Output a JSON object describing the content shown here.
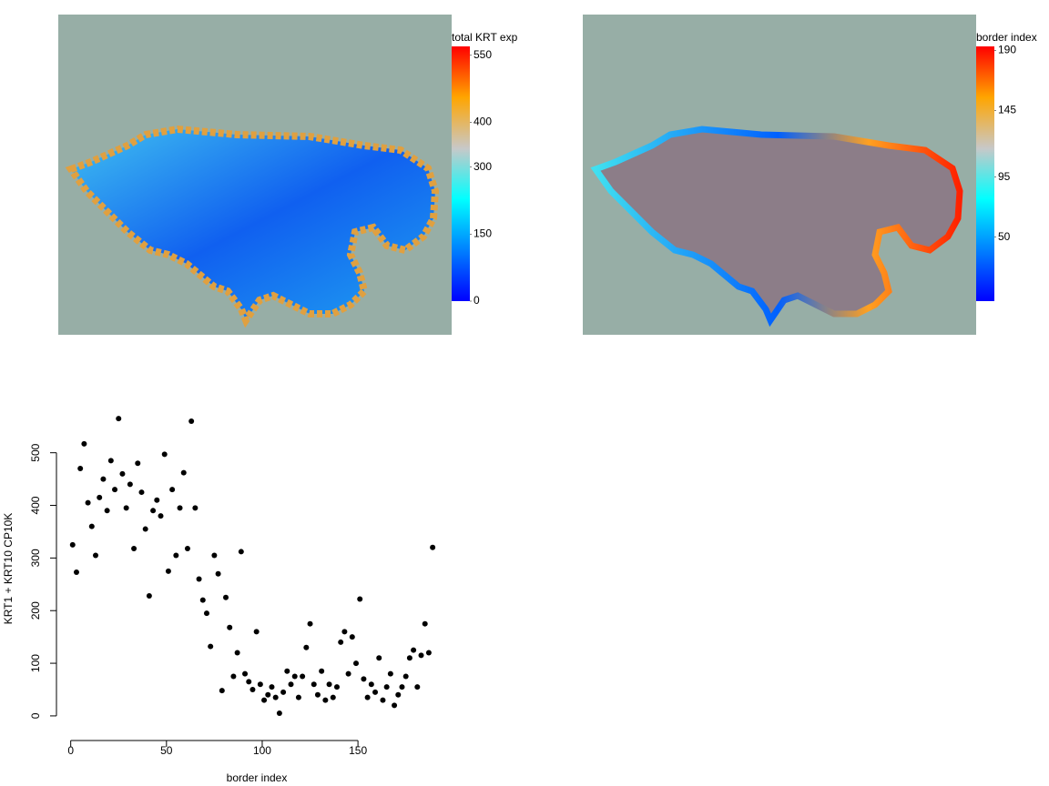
{
  "chart_data": [
    {
      "type": "spatial",
      "colorbar_title": "total KRT exp",
      "colormap": [
        "#0000ff",
        "#0080ff",
        "#00ffff",
        "#c8c8c8",
        "#ffa500",
        "#ff0000"
      ],
      "clim": [
        0,
        570
      ],
      "cticks": [
        0,
        150,
        300,
        400,
        550
      ]
    },
    {
      "type": "spatial",
      "colorbar_title": "border index",
      "colormap": [
        "#0000ff",
        "#0080ff",
        "#00ffff",
        "#c8c8c8",
        "#ffa500",
        "#ff0000"
      ],
      "clim": [
        2,
        193
      ],
      "cticks": [
        50,
        95,
        145,
        190
      ]
    },
    {
      "type": "scatter",
      "xlabel": "border index",
      "ylabel": "KRT1 + KRT10 CP10K",
      "color": "#000000",
      "x": [
        1,
        3,
        5,
        7,
        9,
        11,
        13,
        15,
        17,
        19,
        21,
        23,
        25,
        27,
        29,
        31,
        33,
        35,
        37,
        39,
        41,
        43,
        45,
        47,
        49,
        51,
        53,
        55,
        57,
        59,
        61,
        63,
        65,
        67,
        69,
        71,
        73,
        75,
        77,
        79,
        81,
        83,
        85,
        87,
        89,
        91,
        93,
        95,
        97,
        99,
        101,
        103,
        105,
        107,
        109,
        111,
        113,
        115,
        117,
        119,
        121,
        123,
        125,
        127,
        129,
        131,
        133,
        135,
        137,
        139,
        141,
        143,
        145,
        147,
        149,
        151,
        153,
        155,
        157,
        159,
        161,
        163,
        165,
        167,
        169,
        171,
        173,
        175,
        177,
        179,
        181,
        183,
        185,
        187,
        189
      ],
      "values": [
        325,
        273,
        470,
        517,
        405,
        360,
        305,
        415,
        450,
        390,
        485,
        430,
        565,
        460,
        395,
        440,
        318,
        480,
        425,
        355,
        228,
        390,
        410,
        380,
        497,
        275,
        430,
        305,
        395,
        462,
        318,
        560,
        395,
        260,
        220,
        195,
        132,
        305,
        270,
        48,
        225,
        168,
        75,
        120,
        312,
        80,
        65,
        50,
        160,
        60,
        30,
        40,
        55,
        35,
        5,
        45,
        85,
        60,
        75,
        35,
        75,
        130,
        175,
        60,
        40,
        85,
        30,
        60,
        35,
        55,
        140,
        160,
        80,
        150,
        100,
        222,
        70,
        35,
        60,
        45,
        110,
        30,
        55,
        80,
        20,
        40,
        55,
        75,
        110,
        125,
        55,
        115,
        175,
        120,
        320
      ],
      "xlim": [
        -6.5,
        197.5
      ],
      "ylim": [
        -22.6,
        587.6
      ],
      "xticks": [
        0,
        50,
        100,
        150
      ],
      "yticks": [
        0,
        100,
        200,
        300,
        400,
        500
      ]
    }
  ]
}
